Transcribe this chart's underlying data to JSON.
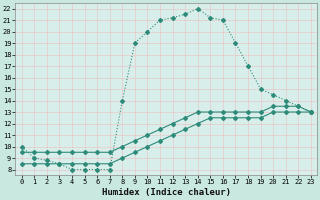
{
  "xlabel": "Humidex (Indice chaleur)",
  "line_color": "#2e8b7a",
  "bg_color": "#c8e8e0",
  "grid_color": "#b8d8d0",
  "plot_bg": "#d8eeea",
  "xlim": [
    -0.5,
    23.5
  ],
  "ylim": [
    7.5,
    22.5
  ],
  "xticks": [
    0,
    1,
    2,
    3,
    4,
    5,
    6,
    7,
    8,
    9,
    10,
    11,
    12,
    13,
    14,
    15,
    16,
    17,
    18,
    19,
    20,
    21,
    22,
    23
  ],
  "yticks": [
    8,
    9,
    10,
    11,
    12,
    13,
    14,
    15,
    16,
    17,
    18,
    19,
    20,
    21,
    22
  ],
  "line1_x": [
    0,
    1,
    2,
    3,
    4,
    5,
    6,
    7,
    8,
    9,
    10,
    11,
    12,
    13,
    14,
    15,
    16,
    17,
    18,
    19,
    20,
    21,
    22,
    23
  ],
  "line1_y": [
    10,
    9,
    8.8,
    8.5,
    8,
    8,
    8,
    8,
    14,
    19,
    20,
    21,
    21.2,
    21.5,
    22,
    21.2,
    21,
    19,
    17,
    15,
    14.5,
    14,
    13.5,
    13
  ],
  "line2_x": [
    0,
    1,
    2,
    3,
    4,
    5,
    6,
    7,
    8,
    9,
    10,
    11,
    12,
    13,
    14,
    15,
    16,
    17,
    18,
    19,
    20,
    21,
    22,
    23
  ],
  "line2_y": [
    9.5,
    9.5,
    9.5,
    9.5,
    9.5,
    9.5,
    9.5,
    9.5,
    10,
    10.5,
    11,
    11.5,
    12,
    12.5,
    13,
    13,
    13,
    13,
    13,
    13,
    13.5,
    13.5,
    13.5,
    13
  ],
  "line3_x": [
    0,
    1,
    2,
    3,
    4,
    5,
    6,
    7,
    8,
    9,
    10,
    11,
    12,
    13,
    14,
    15,
    16,
    17,
    18,
    19,
    20,
    21,
    22,
    23
  ],
  "line3_y": [
    8.5,
    8.5,
    8.5,
    8.5,
    8.5,
    8.5,
    8.5,
    8.5,
    9,
    9.5,
    10,
    10.5,
    11,
    11.5,
    12,
    12.5,
    12.5,
    12.5,
    12.5,
    12.5,
    13,
    13,
    13,
    13
  ]
}
